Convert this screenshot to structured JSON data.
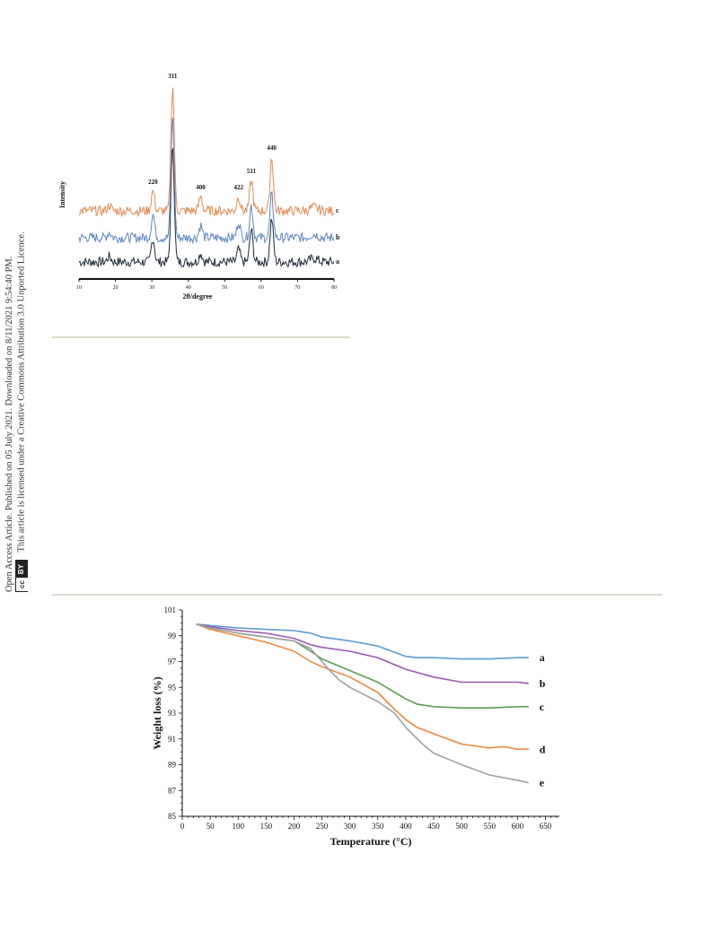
{
  "side_notice": {
    "line1": "Open Access Article. Published on 05 July 2021. Downloaded on 8/11/2021 9:54:40 PM.",
    "line2": "This article is licensed under a Creative Commons Attribution 3.0 Unported Licence.",
    "badge_cc": "cc",
    "badge_by": "BY"
  },
  "chart_data": [
    {
      "type": "line",
      "xlabel": "2θ/degree",
      "ylabel": "Intensity",
      "xlim": [
        10,
        80
      ],
      "xticks": [
        10,
        20,
        30,
        40,
        50,
        60,
        70,
        80
      ],
      "peaks": [
        {
          "label": "220",
          "x": 30.3
        },
        {
          "label": "311",
          "x": 35.7
        },
        {
          "label": "400",
          "x": 43.4
        },
        {
          "label": "422",
          "x": 53.8
        },
        {
          "label": "511",
          "x": 57.3
        },
        {
          "label": "440",
          "x": 62.9
        }
      ],
      "series": [
        {
          "name": "a",
          "color": "#1f2a3c"
        },
        {
          "name": "b",
          "color": "#5b86c8"
        },
        {
          "name": "c",
          "color": "#e88a4f"
        }
      ]
    },
    {
      "type": "line",
      "xlabel": "Temperature (°C)",
      "ylabel": "Weight loss (%)",
      "xlim": [
        0,
        675
      ],
      "ylim": [
        85,
        101
      ],
      "xticks": [
        0,
        50,
        100,
        150,
        200,
        250,
        300,
        350,
        400,
        450,
        500,
        550,
        600,
        650
      ],
      "yticks": [
        85,
        87,
        89,
        91,
        93,
        95,
        97,
        99,
        101
      ],
      "series": [
        {
          "name": "a",
          "color": "#5b9bd5",
          "x": [
            25,
            50,
            100,
            150,
            200,
            230,
            250,
            300,
            350,
            400,
            420,
            450,
            500,
            550,
            600,
            620
          ],
          "y": [
            99.9,
            99.8,
            99.6,
            99.5,
            99.4,
            99.2,
            98.9,
            98.6,
            98.2,
            97.4,
            97.3,
            97.3,
            97.2,
            97.2,
            97.3,
            97.3
          ]
        },
        {
          "name": "b",
          "color": "#9b59b6",
          "x": [
            25,
            50,
            100,
            150,
            200,
            230,
            250,
            300,
            350,
            400,
            450,
            500,
            550,
            600,
            620
          ],
          "y": [
            99.9,
            99.7,
            99.4,
            99.2,
            98.8,
            98.3,
            98.1,
            97.8,
            97.3,
            96.4,
            95.8,
            95.4,
            95.4,
            95.4,
            95.3
          ]
        },
        {
          "name": "c",
          "color": "#5a9e55",
          "x": [
            25,
            50,
            100,
            150,
            200,
            230,
            250,
            300,
            350,
            400,
            420,
            450,
            500,
            550,
            600,
            620
          ],
          "y": [
            99.9,
            99.6,
            99.2,
            98.9,
            98.6,
            97.8,
            97.2,
            96.3,
            95.4,
            94.1,
            93.7,
            93.5,
            93.4,
            93.4,
            93.5,
            93.5
          ]
        },
        {
          "name": "d",
          "color": "#f0883e",
          "x": [
            25,
            50,
            100,
            150,
            200,
            230,
            250,
            300,
            350,
            380,
            400,
            420,
            450,
            500,
            550,
            575,
            600,
            620
          ],
          "y": [
            99.9,
            99.5,
            99.0,
            98.5,
            97.8,
            97.0,
            96.6,
            95.8,
            94.6,
            93.3,
            92.5,
            91.9,
            91.4,
            90.6,
            90.3,
            90.4,
            90.2,
            90.2
          ]
        },
        {
          "name": "e",
          "color": "#a0a0a0",
          "x": [
            25,
            50,
            100,
            150,
            200,
            230,
            260,
            280,
            300,
            350,
            380,
            400,
            430,
            450,
            500,
            550,
            600,
            620
          ],
          "y": [
            99.9,
            99.6,
            99.2,
            98.9,
            98.6,
            98.0,
            96.5,
            95.6,
            95.0,
            93.9,
            93.0,
            91.9,
            90.6,
            89.9,
            89.0,
            88.2,
            87.8,
            87.6
          ]
        }
      ]
    }
  ]
}
